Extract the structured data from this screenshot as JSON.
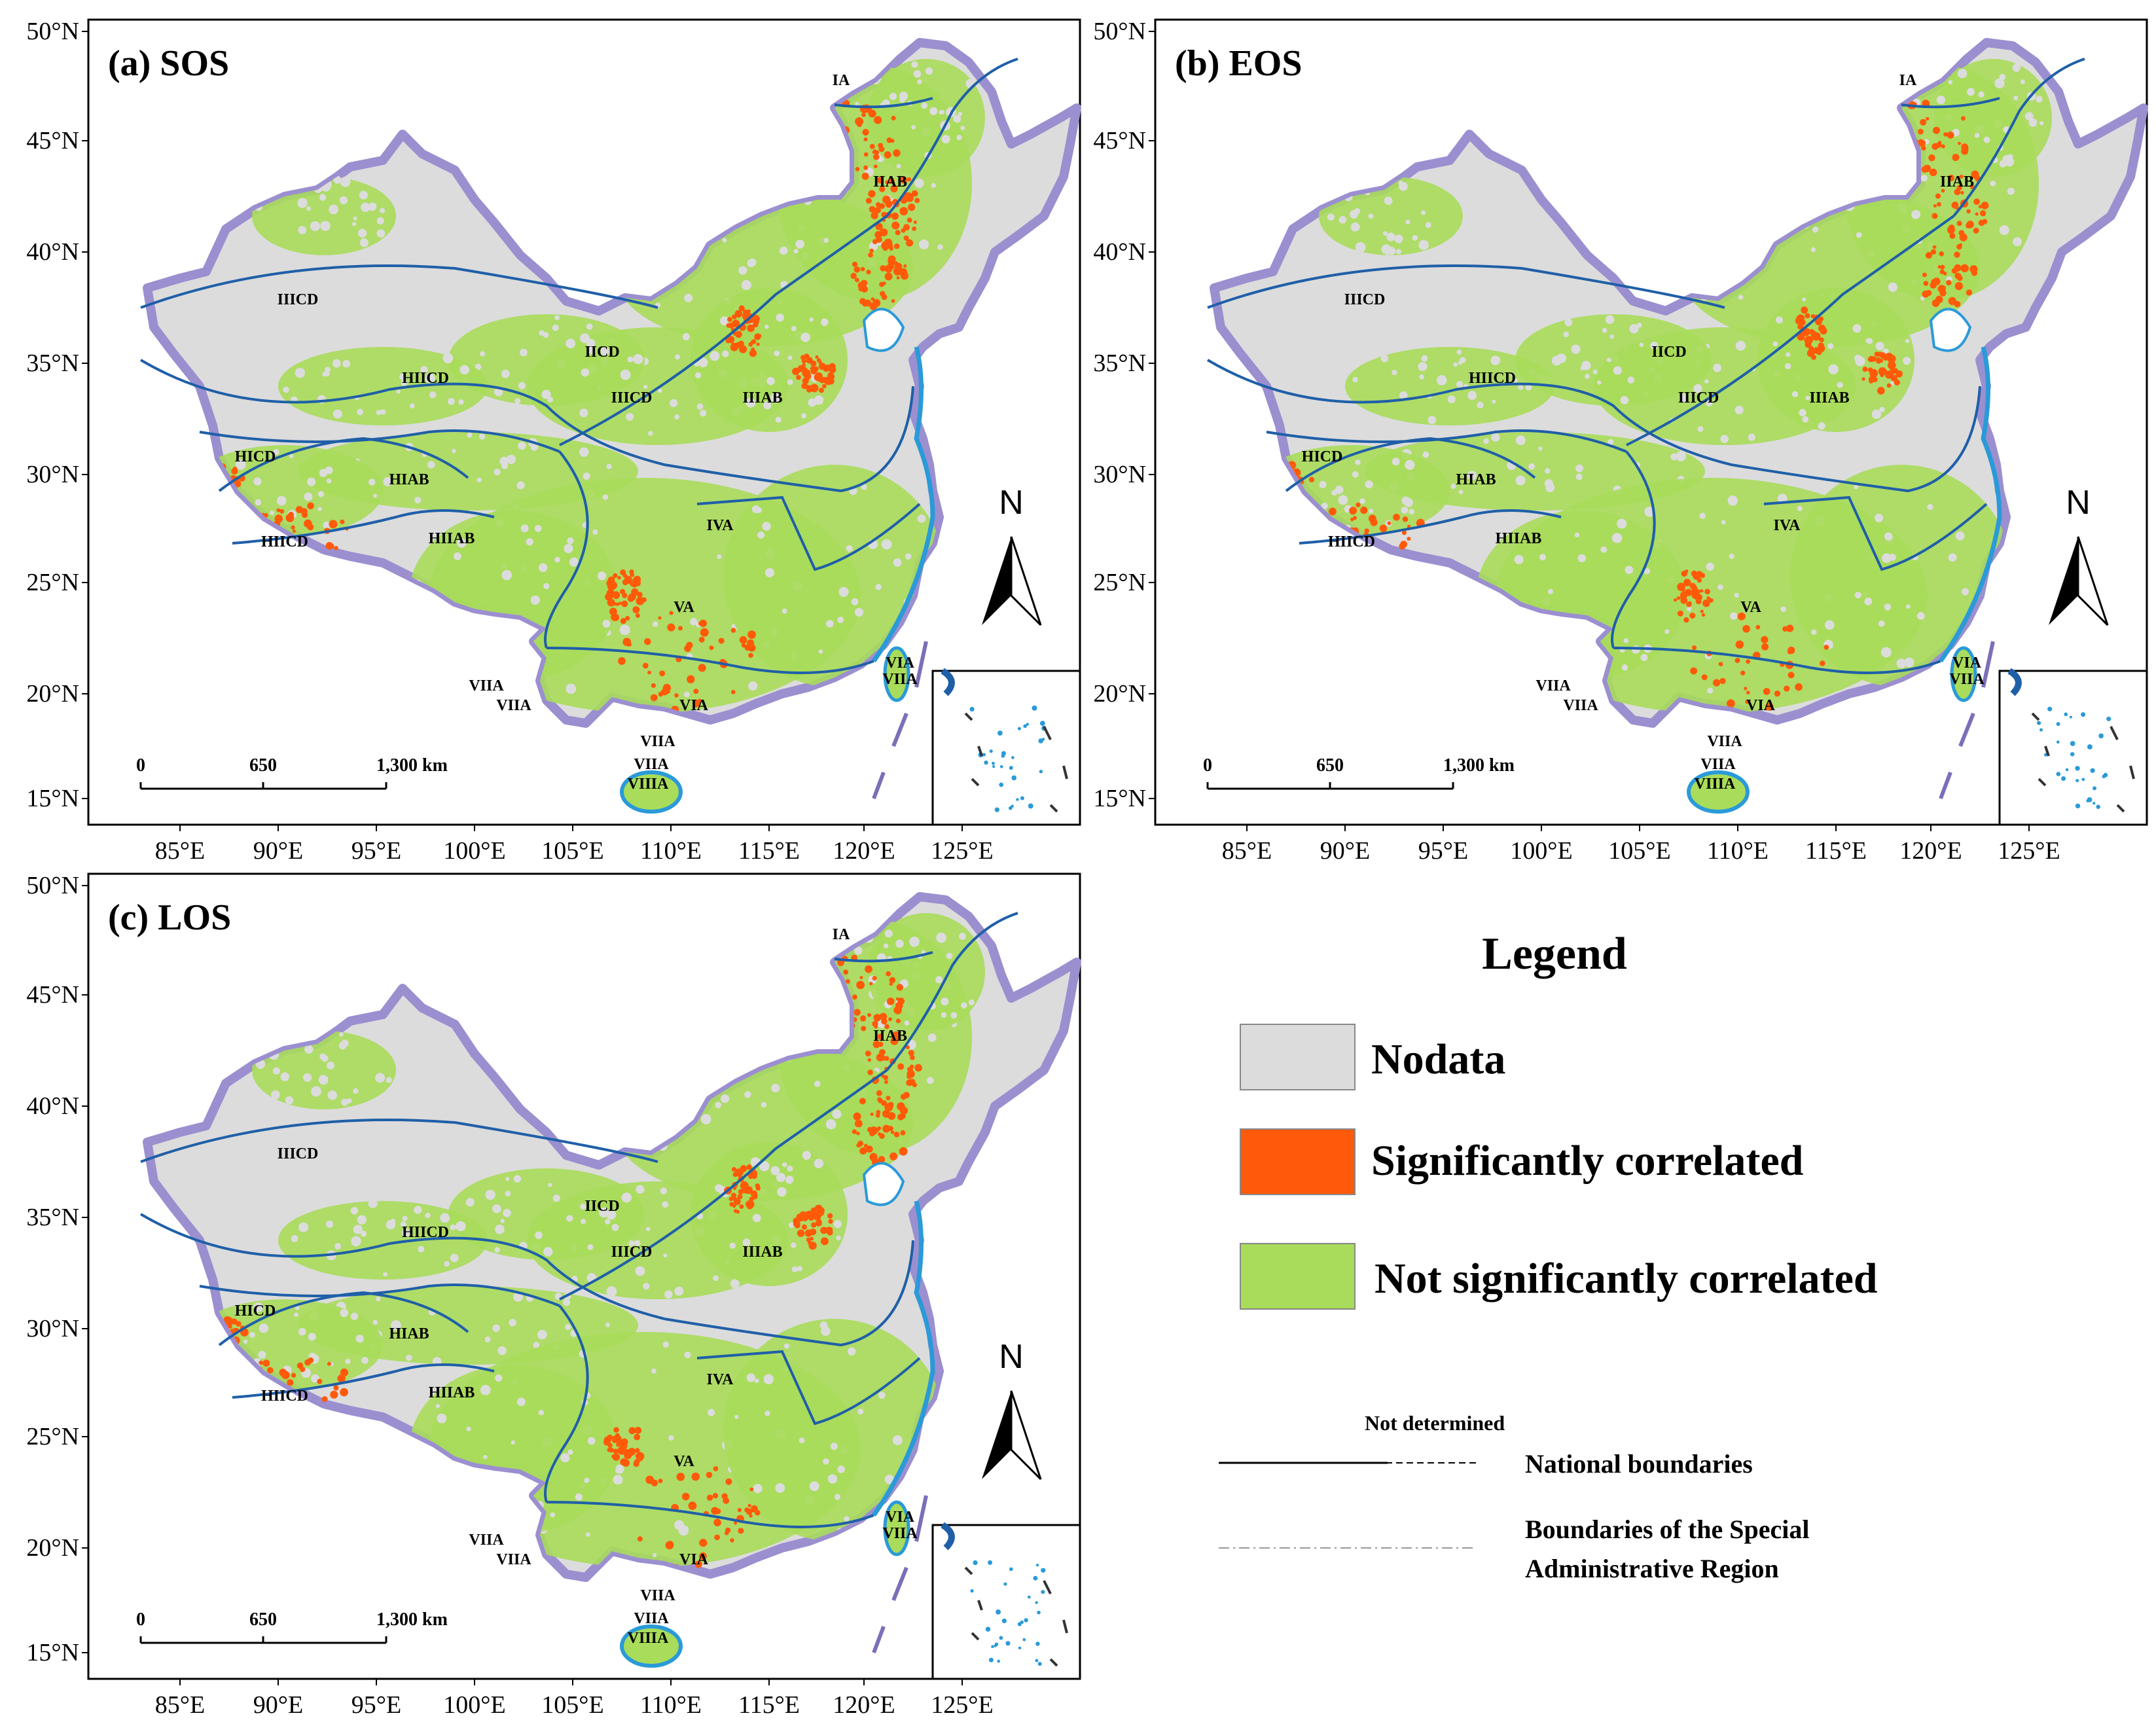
{
  "colors": {
    "nodata": "#dcdcdc",
    "significant": "#ff5a0a",
    "not_significant": "#a8dc5a",
    "national_boundary_halo": "#9b8fd0",
    "zone_lines": "#1f5fa8",
    "coast": "#2a9ad8"
  },
  "panels": [
    {
      "label": "(a) SOS",
      "lat_ticks": [
        "50°N",
        "45°N",
        "40°N",
        "35°N",
        "30°N",
        "25°N",
        "20°N",
        "15°N"
      ],
      "lon_ticks": [
        "85°E",
        "90°E",
        "95°E",
        "100°E",
        "105°E",
        "110°E",
        "115°E",
        "120°E",
        "125°E"
      ],
      "scale": [
        "0",
        "650",
        "1,300 km"
      ],
      "north": "N",
      "regions": [
        "IA",
        "IIAB",
        "IICD",
        "IIICD",
        "HIICD",
        "IIICD",
        "IIIAB",
        "HICD",
        "HIAB",
        "HIICD",
        "HIIAB",
        "IVA",
        "VA",
        "VIIA",
        "VIIA",
        "VIA",
        "VIIA",
        "VIIA",
        "VIIIA",
        "VIA",
        "VIIA"
      ],
      "orange_density": 1.0
    },
    {
      "label": "(b) EOS",
      "lat_ticks": [
        "50°N",
        "45°N",
        "40°N",
        "35°N",
        "30°N",
        "25°N",
        "20°N",
        "15°N"
      ],
      "lon_ticks": [
        "85°E",
        "90°E",
        "95°E",
        "100°E",
        "105°E",
        "110°E",
        "115°E",
        "120°E",
        "125°E"
      ],
      "scale": [
        "0",
        "650",
        "1,300 km"
      ],
      "north": "N",
      "regions": [
        "IA",
        "IIAB",
        "IICD",
        "IIICD",
        "HIICD",
        "IIICD",
        "IIIAB",
        "HICD",
        "HIAB",
        "HIICD",
        "HIIAB",
        "IVA",
        "VA",
        "VIIA",
        "VIIA",
        "VIA",
        "VIIA",
        "VIIA",
        "VIIIA",
        "VIA",
        "VIIA"
      ],
      "orange_density": 0.8
    },
    {
      "label": "(c) LOS",
      "lat_ticks": [
        "50°N",
        "45°N",
        "40°N",
        "35°N",
        "30°N",
        "25°N",
        "20°N",
        "15°N"
      ],
      "lon_ticks": [
        "85°E",
        "90°E",
        "95°E",
        "100°E",
        "105°E",
        "110°E",
        "115°E",
        "120°E",
        "125°E"
      ],
      "scale": [
        "0",
        "650",
        "1,300 km"
      ],
      "north": "N",
      "regions": [
        "IA",
        "IIAB",
        "IICD",
        "IIICD",
        "HIICD",
        "IIICD",
        "IIIAB",
        "HICD",
        "HIAB",
        "HIICD",
        "HIIAB",
        "IVA",
        "VA",
        "VIIA",
        "VIIA",
        "VIA",
        "VIIA",
        "VIIA",
        "VIIIA",
        "VIA",
        "VIIA"
      ],
      "orange_density": 0.9
    }
  ],
  "legend": {
    "title": "Legend",
    "items": [
      {
        "label": "Nodata",
        "color": "#dcdcdc"
      },
      {
        "label": "Significantly correlated",
        "color": "#ff5a0a"
      },
      {
        "label": "Not significantly correlated",
        "color": "#a8dc5a"
      }
    ],
    "not_determined": "Not determined",
    "national_boundaries": "National boundaries",
    "sar_line1": "Boundaries of the Special",
    "sar_line2": "Administrative Region"
  }
}
